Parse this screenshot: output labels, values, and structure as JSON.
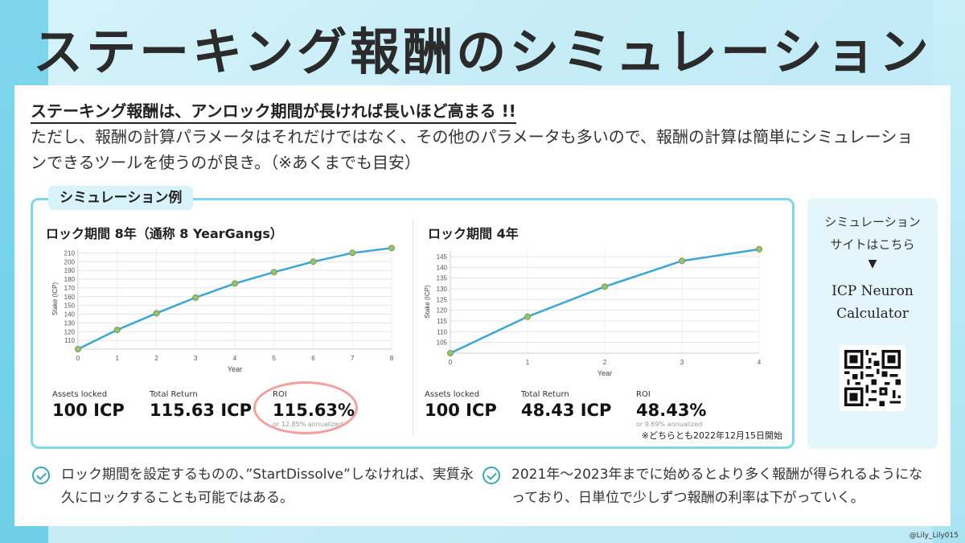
{
  "title": "ステーキング報酬のシミュレーション",
  "intro": {
    "heading": "ステーキング報酬は、アンロック期間が長ければ長いほど高まる !!",
    "body": "ただし、報酬の計算パラメータはそれだけではなく、その他のパラメータも多いので、報酬の計算は簡単にシミュレーションできるツールを使うのが良き。（※あくまでも目安）"
  },
  "simulation": {
    "tag": "シミュレーション例",
    "note": "※どちらとも2022年12月15日開始",
    "left": {
      "title": "ロック期間 8年（通称 8 YearGangs）",
      "assets_label": "Assets locked",
      "assets_value": "100 ICP",
      "return_label": "Total Return",
      "return_value": "115.63 ICP",
      "roi_label": "ROI",
      "roi_value": "115.63%",
      "roi_sub": "or 12.85% annualized"
    },
    "right": {
      "title": "ロック期間 4年",
      "assets_label": "Assets locked",
      "assets_value": "100 ICP",
      "return_label": "Total Return",
      "return_value": "48.43 ICP",
      "roi_label": "ROI",
      "roi_value": "48.43%",
      "roi_sub": "or 9.69% annualized"
    }
  },
  "chart_data": [
    {
      "type": "line",
      "xlabel": "Year",
      "ylabel": "Stake (ICP)",
      "x": [
        0,
        1,
        2,
        3,
        4,
        5,
        6,
        7,
        8
      ],
      "y": [
        100,
        122,
        141,
        159,
        175,
        188,
        200,
        210,
        215.63
      ],
      "xlim": [
        0,
        8
      ],
      "ylim": [
        100,
        215
      ],
      "yticks": [
        110,
        120,
        130,
        140,
        150,
        160,
        170,
        180,
        190,
        200,
        210
      ],
      "grid": true
    },
    {
      "type": "line",
      "xlabel": "Year",
      "ylabel": "Stake (ICP)",
      "x": [
        0,
        1,
        2,
        3,
        4
      ],
      "y": [
        100,
        117,
        131,
        143,
        148.43
      ],
      "xlim": [
        0,
        4
      ],
      "ylim": [
        100,
        148
      ],
      "yticks": [
        105,
        110,
        115,
        120,
        125,
        130,
        135,
        140,
        145
      ],
      "grid": true
    }
  ],
  "side": {
    "line1": "シミュレーション",
    "line2": "サイトはこちら",
    "arrow": "▼",
    "name1": "ICP Neuron",
    "name2": "Calculator"
  },
  "bullets": {
    "left": "ロック期間を設定するものの、”StartDissolve”しなければ、実質永久にロックすることも可能ではある。",
    "right": "2021年〜2023年までに始めるとより多く報酬が得られるようになっており、日単位で少しずつ報酬の利率は下がっていく。"
  },
  "handle": "@Lily_Lily015",
  "colors": {
    "line": "#3aa6d8",
    "point": "#9bc26e",
    "accent": "#7fd7ea",
    "roi_ring": "#f2a0a0"
  }
}
